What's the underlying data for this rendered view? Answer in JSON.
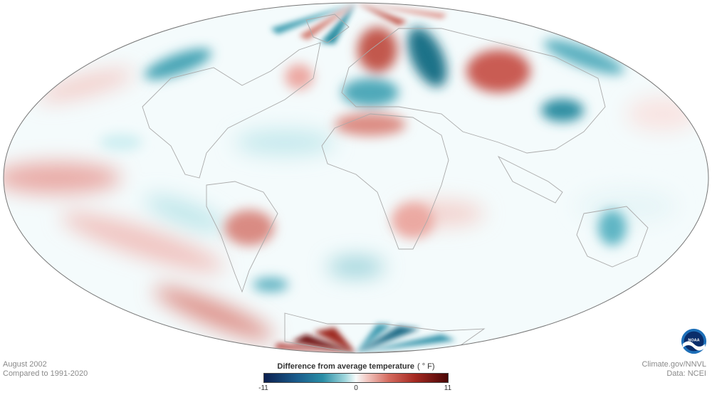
{
  "footer": {
    "date": "August 2002",
    "baseline": "Compared to 1991-2020",
    "credit": "Climate.gov/NNVL",
    "data_source": "Data: NCEI"
  },
  "legend": {
    "title": "Difference from average temperature",
    "unit": "( ° F)",
    "min_label": "-11",
    "mid_label": "0",
    "max_label": "11",
    "min": -11,
    "max": 11,
    "colors": [
      "#0c1f4f",
      "#1a5c8c",
      "#2a8ea6",
      "#9fd6dc",
      "#f7fbfb",
      "#f2c8c2",
      "#d46a5e",
      "#a62a22",
      "#4a0606"
    ]
  },
  "map": {
    "projection": "Mollweide",
    "land_outline_color": "#aaaaaa",
    "ocean_background_color": "#f4fbfc",
    "border_color": "#777777"
  },
  "logo": {
    "name": "noaa-logo",
    "text": "NOAA"
  }
}
